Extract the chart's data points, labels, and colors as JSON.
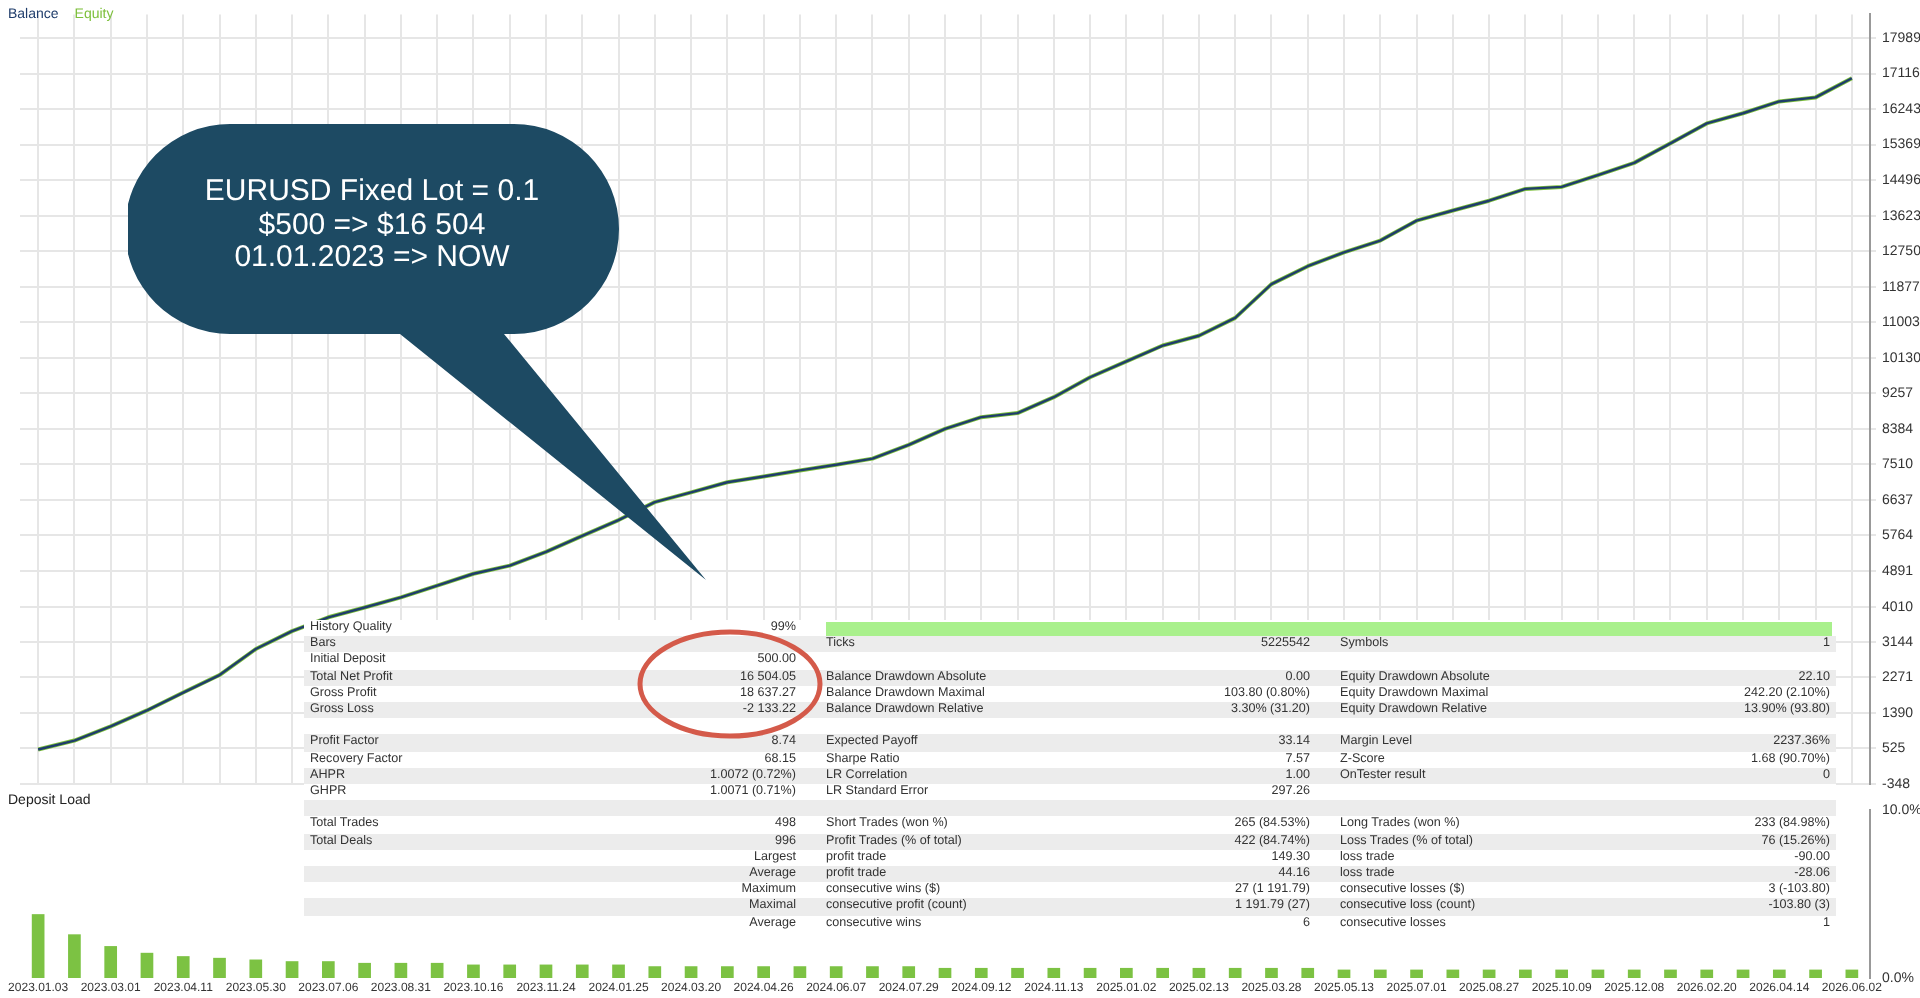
{
  "chart_data": [
    {
      "type": "line",
      "categories": [
        "2023.01.03",
        null,
        "2023.03.01",
        null,
        "2023.04.11",
        null,
        "2023.05.30",
        null,
        "2023.07.06",
        null,
        "2023.08.31",
        null,
        "2023.10.16",
        null,
        "2023.11.24",
        null,
        "2024.01.25",
        null,
        "2024.03.20",
        null,
        "2024.04.26",
        null,
        "2024.06.07",
        null,
        "2024.07.29",
        null,
        "2024.09.12",
        null,
        "2024.11.13",
        null,
        "2025.01.02",
        null,
        "2025.02.13",
        null,
        "2025.03.28",
        null,
        "2025.05.13",
        null,
        "2025.07.01",
        null,
        "2025.08.27",
        null,
        "2025.10.09",
        null,
        "2025.12.08",
        null,
        "2026.02.20",
        null,
        "2026.04.14",
        null,
        "2026.06.02"
      ],
      "series": [
        {
          "name": "Balance",
          "color": "#1f3d6b",
          "values": [
            500,
            720,
            1070,
            1460,
            1900,
            2330,
            2970,
            3410,
            3750,
            3990,
            4240,
            4530,
            4820,
            5020,
            5360,
            5750,
            6140,
            6580,
            6820,
            7070,
            7210,
            7360,
            7500,
            7650,
            7990,
            8380,
            8670,
            8770,
            9160,
            9650,
            10040,
            10430,
            10670,
            11110,
            11940,
            12380,
            12720,
            13010,
            13500,
            13750,
            13990,
            14280,
            14330,
            14620,
            14920,
            15400,
            15890,
            16140,
            16430,
            16530,
            17000
          ]
        },
        {
          "name": "Equity",
          "color": "#7cbf3a",
          "values": [
            500,
            720,
            1070,
            1460,
            1900,
            2330,
            2970,
            3410,
            3750,
            3990,
            4240,
            4530,
            4820,
            5020,
            5360,
            5750,
            6140,
            6580,
            6820,
            7070,
            7210,
            7360,
            7500,
            7650,
            7990,
            8380,
            8670,
            8770,
            9160,
            9650,
            10040,
            10430,
            10670,
            11110,
            11940,
            12380,
            12720,
            13010,
            13500,
            13750,
            13990,
            14280,
            14330,
            14620,
            14920,
            15400,
            15890,
            16140,
            16430,
            16530,
            17000
          ]
        }
      ],
      "ylim": [
        -348,
        18570
      ],
      "yticks": [
        17989,
        17116,
        16243,
        15369,
        14496,
        13623,
        12750,
        11877,
        11003,
        10130,
        9257,
        8384,
        7510,
        6637,
        5764,
        4891,
        4010,
        3144,
        2271,
        1390,
        525,
        -348
      ],
      "grid": true,
      "legend": "top left",
      "tick_labels": "y",
      "annotations": [
        "EURUSD Fixed Lot = 0.1",
        "$500 => $16 504",
        "01.01.2023 => NOW"
      ]
    },
    {
      "type": "bar",
      "title": "Deposit Load",
      "categories": [
        "2023.01.03",
        null,
        "2023.03.01",
        null,
        "2023.04.11",
        null,
        "2023.05.30",
        null,
        "2023.07.06",
        null,
        "2023.08.31",
        null,
        "2023.10.16",
        null,
        "2023.11.24",
        null,
        "2024.01.25",
        null,
        "2024.03.20",
        null,
        "2024.04.26",
        null,
        "2024.06.07",
        null,
        "2024.07.29",
        null,
        "2024.09.12",
        null,
        "2024.11.13",
        null,
        "2025.01.02",
        null,
        "2025.02.13",
        null,
        "2025.03.28",
        null,
        "2025.05.13",
        null,
        "2025.07.01",
        null,
        "2025.08.27",
        null,
        "2025.10.09",
        null,
        "2025.12.08",
        null,
        "2026.02.20",
        null,
        "2026.04.14",
        null,
        "2026.06.02"
      ],
      "values": [
        3.8,
        2.6,
        1.9,
        1.5,
        1.3,
        1.2,
        1.1,
        1.0,
        1.0,
        0.9,
        0.9,
        0.9,
        0.8,
        0.8,
        0.8,
        0.8,
        0.8,
        0.7,
        0.7,
        0.7,
        0.7,
        0.7,
        0.7,
        0.7,
        0.7,
        0.6,
        0.6,
        0.6,
        0.6,
        0.6,
        0.6,
        0.6,
        0.6,
        0.6,
        0.6,
        0.6,
        0.5,
        0.5,
        0.5,
        0.5,
        0.5,
        0.5,
        0.5,
        0.5,
        0.5,
        0.5,
        0.5,
        0.5,
        0.5,
        0.5,
        0.5
      ],
      "color": "#7cc243",
      "ylim": [
        0,
        10
      ],
      "yticks": [
        {
          "value": 0,
          "label": "0.0%"
        },
        {
          "value": 10,
          "label": "10.0%"
        }
      ]
    },
    {
      "type": "other",
      "annotations": [
        "History Quality",
        "99%",
        "Bars",
        "Ticks",
        "5225542",
        "Symbols",
        "1",
        "Initial Deposit",
        "500.00",
        "Total Net Profit",
        "16 504.05",
        "Balance Drawdown Absolute",
        "0.00",
        "Equity Drawdown Absolute",
        "22.10",
        "Gross Profit",
        "18 637.27",
        "Balance Drawdown Maximal",
        "103.80 (0.80%)",
        "Equity Drawdown Maximal",
        "242.20 (2.10%)",
        "Gross Loss",
        "-2 133.22",
        "Balance Drawdown Relative",
        "3.30% (31.20)",
        "Equity Drawdown Relative",
        "13.90% (93.80)",
        "Profit Factor",
        "8.74",
        "Expected Payoff",
        "33.14",
        "Margin Level",
        "2237.36%",
        "Recovery Factor",
        "68.15",
        "Sharpe Ratio",
        "7.57",
        "Z-Score",
        "1.68 (90.70%)",
        "AHPR",
        "1.0072 (0.72%)",
        "LR Correlation",
        "1.00",
        "OnTester result",
        "0",
        "GHPR",
        "1.0071 (0.71%)",
        "LR Standard Error",
        "297.26",
        "Total Trades",
        "498",
        "Short Trades (won %)",
        "265 (84.53%)",
        "Long Trades (won %)",
        "233 (84.98%)",
        "Total Deals",
        "996",
        "Profit Trades (% of total)",
        "422 (84.74%)",
        "Loss Trades (% of total)",
        "76 (15.26%)",
        "Largest",
        "profit trade",
        "149.30",
        "loss trade",
        "-90.00",
        "Average",
        "profit trade",
        "44.16",
        "loss trade",
        "-28.06",
        "Maximum",
        "consecutive wins ($)",
        "27 (1 191.79)",
        "consecutive losses ($)",
        "3 (-103.80)",
        "Maximal",
        "consecutive profit (count)",
        "1 191.79 (27)",
        "consecutive loss (count)",
        "-103.80 (3)",
        "Average",
        "consecutive wins",
        "6",
        "consecutive losses",
        "1"
      ]
    }
  ]
}
